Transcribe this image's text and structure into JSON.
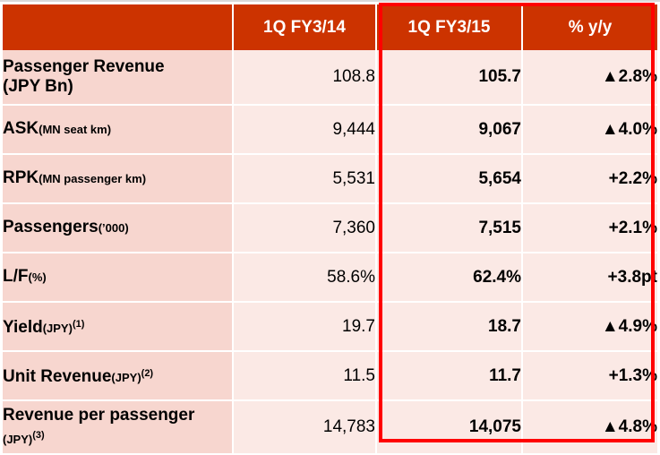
{
  "header": {
    "col1": "1Q FY3/14",
    "col2": "1Q FY3/15",
    "col3": "% y/y"
  },
  "rows": [
    {
      "label": "Passenger Revenue",
      "label2": "(JPY Bn)",
      "unit": "",
      "note": "",
      "prev": "108.8",
      "curr": "105.7",
      "yoy": "▲2.8%"
    },
    {
      "label": "ASK",
      "label2": "",
      "unit": "(MN seat km)",
      "note": "",
      "prev": "9,444",
      "curr": "9,067",
      "yoy": "▲4.0%"
    },
    {
      "label": "RPK",
      "label2": "",
      "unit": "(MN passenger km)",
      "note": "",
      "prev": "5,531",
      "curr": "5,654",
      "yoy": "+2.2%"
    },
    {
      "label": "Passengers",
      "label2": "",
      "unit": "(’000)",
      "note": "",
      "prev": "7,360",
      "curr": "7,515",
      "yoy": "+2.1%"
    },
    {
      "label": "L/F",
      "label2": "",
      "unit": "(%)",
      "note": "",
      "prev": "58.6%",
      "curr": "62.4%",
      "yoy": "+3.8pt"
    },
    {
      "label": "Yield",
      "label2": "",
      "unit": "(JPY)",
      "note": "(1)",
      "prev": "19.7",
      "curr": "18.7",
      "yoy": "▲4.9%"
    },
    {
      "label": "Unit Revenue",
      "label2": "",
      "unit": "(JPY)",
      "note": "(2)",
      "prev": "11.5",
      "curr": "11.7",
      "yoy": "+1.3%"
    },
    {
      "label": "Revenue per passenger",
      "label2": "(JPY)",
      "unit": "",
      "note": "(3)",
      "prev": "14,783",
      "curr": "14,075",
      "yoy": "▲4.8%"
    }
  ],
  "colors": {
    "header_bg": "#cc3300",
    "label_bg": "#f7d6cf",
    "value_bg": "#fbe9e5",
    "highlight": "#ff0000"
  }
}
